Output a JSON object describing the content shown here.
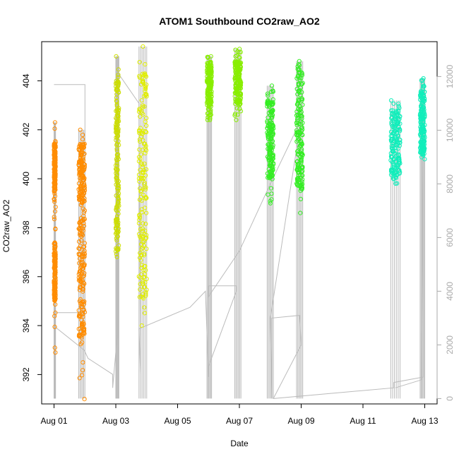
{
  "chart_data": {
    "type": "scatter",
    "title": "ATOM1 Southbound CO2raw_AO2",
    "xlabel": "Date",
    "ylabel": "CO2raw_AO2",
    "x_tick_labels": [
      "Aug 01",
      "Aug 03",
      "Aug 05",
      "Aug 07",
      "Aug 09",
      "Aug 11",
      "Aug 13"
    ],
    "x_tick_values": [
      1,
      3,
      5,
      7,
      9,
      11,
      13
    ],
    "xlim": [
      0.6,
      13.4
    ],
    "ylim": [
      390.8,
      405.6
    ],
    "y_ticks": [
      392,
      394,
      396,
      398,
      400,
      402,
      404
    ],
    "y2_ticks": [
      0,
      2000,
      4000,
      6000,
      8000,
      10000,
      12000
    ],
    "y2lim": [
      -200,
      13300
    ],
    "grid": false,
    "secondary_series": {
      "color": "#bbbbbb",
      "points": [
        [
          1.0,
          11700
        ],
        [
          2.0,
          11700
        ],
        [
          2.0,
          11100
        ],
        [
          2.0,
          3200
        ],
        [
          1.0,
          3200
        ],
        [
          1.0,
          2700
        ],
        [
          1.98,
          1800
        ],
        [
          2.1,
          1500
        ],
        [
          2.9,
          900
        ],
        [
          2.9,
          400
        ],
        [
          3.05,
          2400
        ],
        [
          3.05,
          12200
        ],
        [
          3.15,
          12000
        ],
        [
          3.75,
          11000
        ],
        [
          3.8,
          900
        ],
        [
          3.75,
          2600
        ],
        [
          5.4,
          3400
        ],
        [
          5.9,
          4000
        ],
        [
          6.0,
          800
        ],
        [
          6.0,
          1200
        ],
        [
          6.9,
          4000
        ],
        [
          6.9,
          4200
        ],
        [
          6.0,
          4200
        ],
        [
          6.0,
          3800
        ],
        [
          7.0,
          5500
        ],
        [
          8.0,
          8000
        ],
        [
          9.0,
          10400
        ],
        [
          8.0,
          3000
        ],
        [
          8.05,
          0.0
        ],
        [
          8.05,
          3000
        ],
        [
          8.95,
          3100
        ],
        [
          9.0,
          2000
        ],
        [
          8.1,
          0.0
        ],
        [
          12.0,
          400
        ],
        [
          12.0,
          600
        ],
        [
          12.95,
          800
        ],
        [
          12.95,
          11200
        ],
        [
          12.9,
          700
        ],
        [
          12.05,
          400
        ]
      ]
    },
    "series": [
      {
        "color": "#ff8c00",
        "groups": [
          {
            "x": [
              1.0,
              1.05
            ],
            "y": [
              392.9,
              402.3
            ],
            "dense": [
              [
                395.0,
                397.4
              ],
              [
                399.5,
                401.5
              ]
            ]
          },
          {
            "x": [
              1.8,
              2.0
            ],
            "y": [
              391.0,
              402.0
            ],
            "dense": [
              [
                393.5,
                398.5
              ],
              [
                399.0,
                401.5
              ]
            ]
          }
        ]
      },
      {
        "color": "#ccdd00",
        "groups": [
          {
            "x": [
              3.0,
              3.1
            ],
            "y": [
              396.8,
              405.0
            ],
            "dense": [
              [
                397.0,
                404.0
              ]
            ]
          }
        ]
      },
      {
        "color": "#e0ee00",
        "groups": [
          {
            "x": [
              3.75,
              4.0
            ],
            "y": [
              394.0,
              405.4
            ],
            "dense": [
              [
                395.0,
                404.5
              ]
            ]
          }
        ]
      },
      {
        "color": "#88ee00",
        "groups": [
          {
            "x": [
              5.95,
              6.1
            ],
            "y": [
              402.4,
              405.0
            ],
            "dense": [
              [
                403.0,
                404.8
              ]
            ]
          },
          {
            "x": [
              6.85,
              7.05
            ],
            "y": [
              402.4,
              405.3
            ],
            "dense": [
              [
                403.0,
                404.8
              ]
            ]
          }
        ]
      },
      {
        "color": "#33ee22",
        "groups": [
          {
            "x": [
              7.9,
              8.1
            ],
            "y": [
              399.0,
              403.8
            ],
            "dense": [
              [
                400.0,
                403.2
              ]
            ]
          },
          {
            "x": [
              8.85,
              9.05
            ],
            "y": [
              398.6,
              404.8
            ],
            "dense": [
              [
                399.5,
                404.6
              ]
            ]
          }
        ]
      },
      {
        "color": "#11eebb",
        "groups": [
          {
            "x": [
              11.9,
              12.2
            ],
            "y": [
              399.8,
              403.2
            ],
            "dense": [
              [
                400.0,
                402.8
              ]
            ]
          },
          {
            "x": [
              12.85,
              13.0
            ],
            "y": [
              400.8,
              404.1
            ],
            "dense": [
              [
                401.0,
                403.6
              ]
            ]
          }
        ]
      }
    ]
  }
}
